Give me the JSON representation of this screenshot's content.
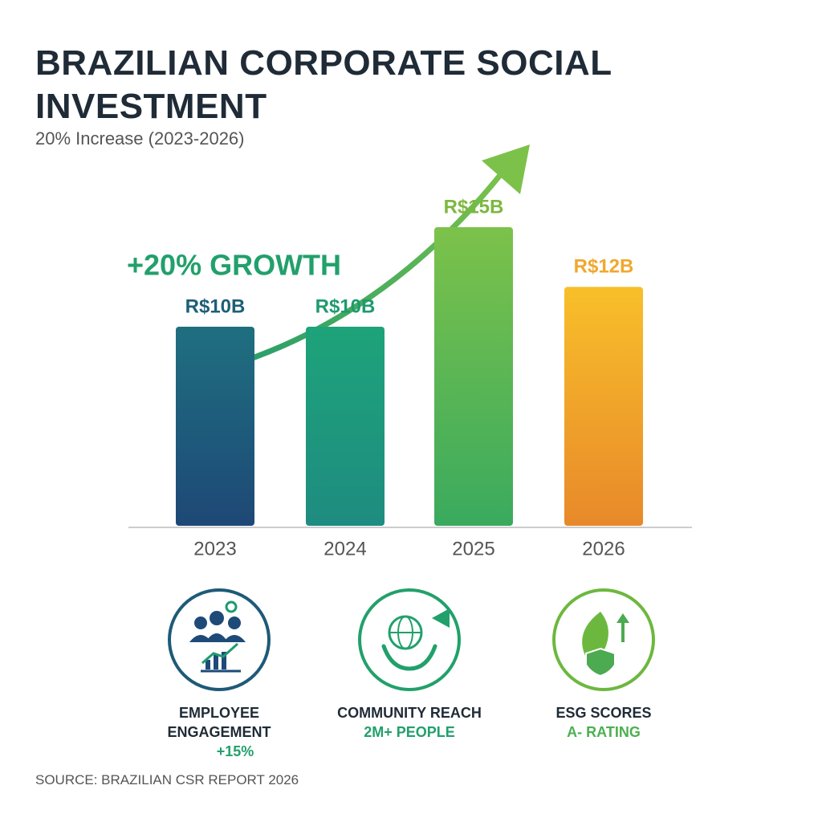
{
  "chart_data": {
    "type": "bar",
    "title": "BRAZILIAN CORPORATE SOCIAL INVESTMENT",
    "subtitle": "20% Increase (2023-2026)",
    "annotation": "+20% GROWTH",
    "categories": [
      "2023",
      "2024",
      "2025",
      "2026"
    ],
    "values": [
      10,
      10,
      15,
      12
    ],
    "value_labels": [
      "R$10B",
      "R$10B",
      "R$15B",
      "R$12B"
    ],
    "colors": [
      [
        "#1f6f80",
        "#1e4876"
      ],
      [
        "#1ea37a",
        "#1e8c80"
      ],
      [
        "#7cc24a",
        "#3aaa5e"
      ],
      [
        "#f8bf2a",
        "#e8892a"
      ]
    ],
    "label_colors": [
      "#1e5f78",
      "#1f9a6e",
      "#7cb83f",
      "#f0a830"
    ]
  },
  "metrics": [
    {
      "label": "EMPLOYEE ENGAGEMENT",
      "value": "+15%"
    },
    {
      "label": "COMMUNITY REACH",
      "value": "2M+ PEOPLE"
    },
    {
      "label": "ESG SCORES",
      "value": "A- RATING"
    }
  ],
  "source": "SOURCE: BRAZILIAN CSR REPORT 2026"
}
